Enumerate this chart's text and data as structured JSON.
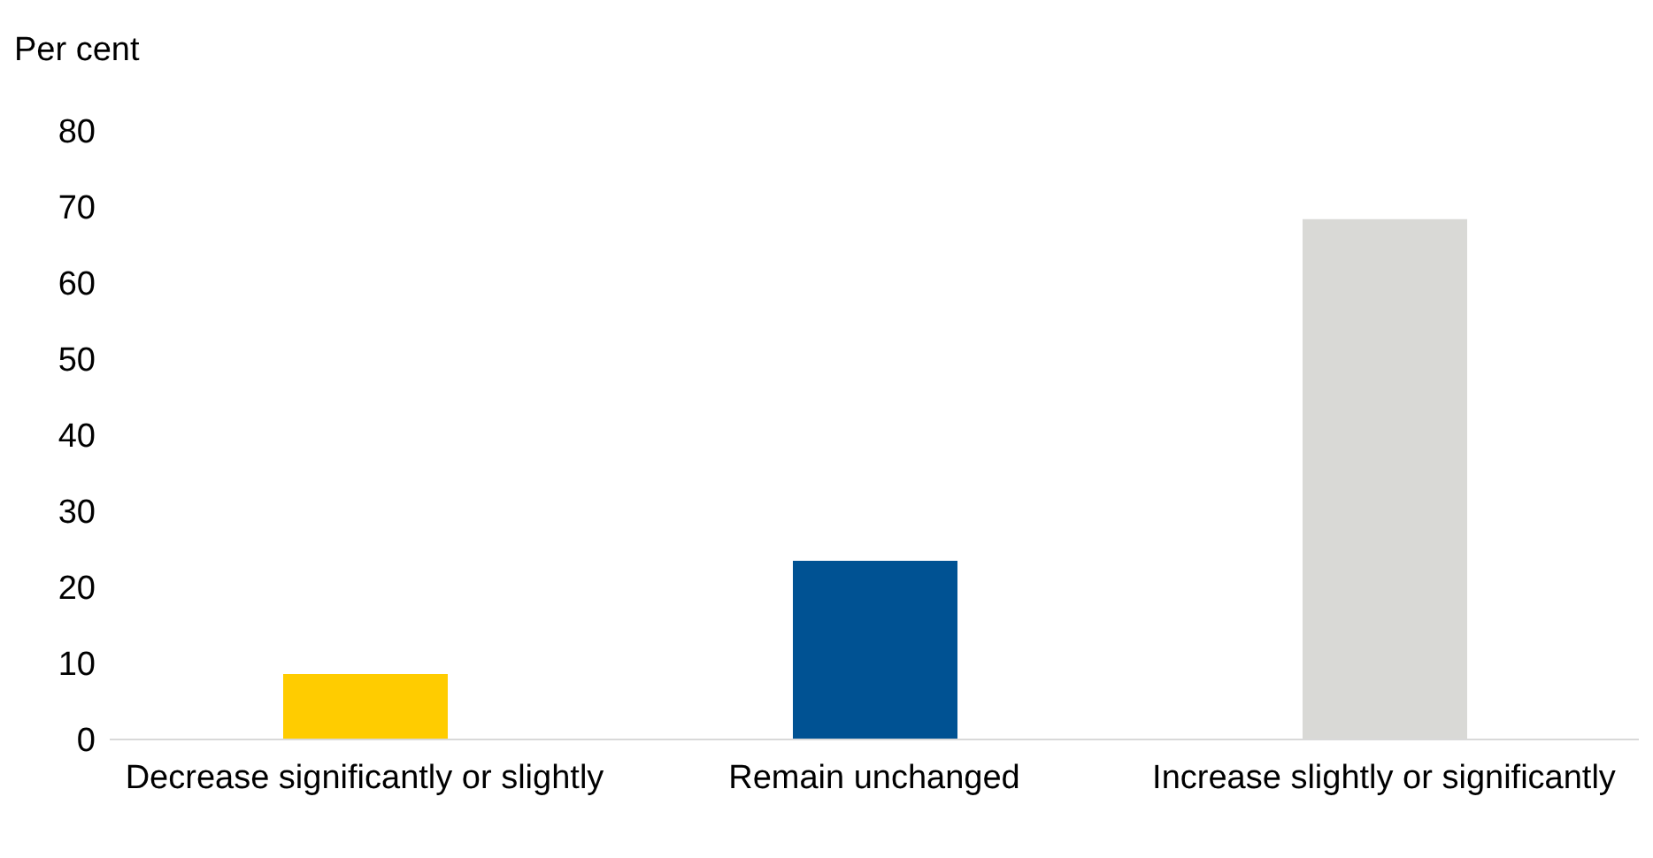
{
  "chart_data": {
    "type": "bar",
    "ylabel": "Per cent",
    "categories": [
      "Decrease significantly or slightly",
      "Remain unchanged",
      "Increase slightly or significantly"
    ],
    "values": [
      8.6,
      23.5,
      68.4
    ],
    "colors": [
      "#ffcc00",
      "#005293",
      "#d9d9d6"
    ],
    "ylim": [
      0,
      80
    ],
    "yticks": [
      0,
      10,
      20,
      30,
      40,
      50,
      60,
      70,
      80
    ],
    "grid": false,
    "legend": false
  }
}
